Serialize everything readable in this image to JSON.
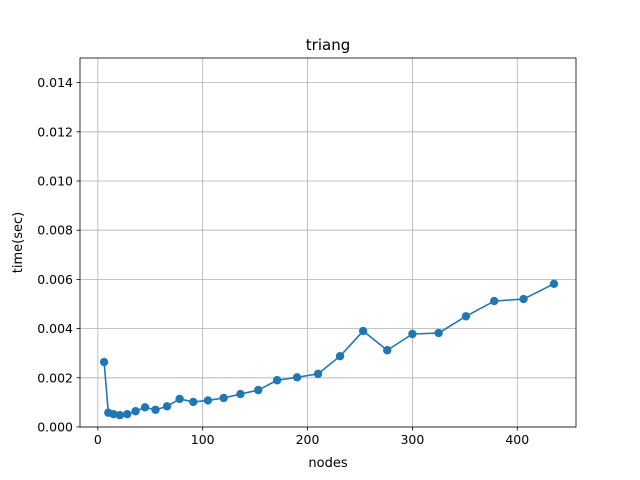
{
  "chart_data": {
    "type": "line",
    "title": "triang",
    "xlabel": "nodes",
    "ylabel": "time(sec)",
    "xlim": [
      -17,
      456
    ],
    "ylim": [
      0,
      0.015
    ],
    "xticks": [
      0,
      100,
      200,
      300,
      400
    ],
    "yticks": [
      0.0,
      0.002,
      0.004,
      0.006,
      0.008,
      0.01,
      0.012,
      0.014
    ],
    "xtick_labels": [
      "0",
      "100",
      "200",
      "300",
      "400"
    ],
    "ytick_labels": [
      "0.000",
      "0.002",
      "0.004",
      "0.006",
      "0.008",
      "0.010",
      "0.012",
      "0.014"
    ],
    "grid": true,
    "markers": true,
    "colors": {
      "series": "#1f77b4",
      "grid": "#b0b0b0",
      "axes": "#000000"
    },
    "series": [
      {
        "x": [
          6,
          10,
          15,
          21,
          28,
          36,
          45,
          55,
          66,
          78,
          91,
          105,
          120,
          136,
          153,
          171,
          190,
          210,
          231,
          253,
          276,
          300,
          325,
          351,
          378,
          406,
          435
        ],
        "y": [
          0.00264,
          0.00058,
          0.00052,
          0.00048,
          0.00052,
          0.00064,
          0.0008,
          0.0007,
          0.00084,
          0.00114,
          0.00102,
          0.00108,
          0.00118,
          0.00134,
          0.0015,
          0.0019,
          0.00202,
          0.00216,
          0.00288,
          0.0039,
          0.00312,
          0.00378,
          0.00382,
          0.0045,
          0.00512,
          0.0052,
          0.00582
        ]
      }
    ]
  }
}
